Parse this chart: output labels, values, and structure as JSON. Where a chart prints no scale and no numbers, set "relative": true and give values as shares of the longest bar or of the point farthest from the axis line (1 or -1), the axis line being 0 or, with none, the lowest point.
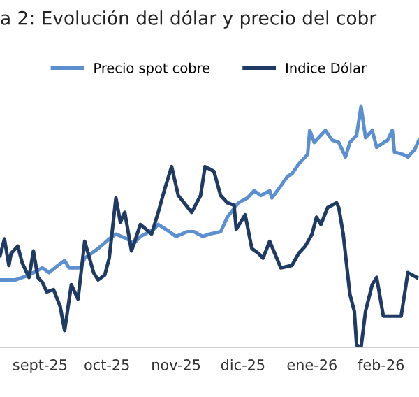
{
  "chart_data": {
    "type": "line",
    "title": "a 2: Evolución del dólar y precio del cobr",
    "relative": true,
    "legend": "top",
    "grid": false,
    "marker": "none",
    "line_style": "solid",
    "xlim": [
      "2025-08-28",
      "2026-03-04"
    ],
    "xticks": [
      {
        "value": "2025-09-15",
        "label": "sept-25"
      },
      {
        "value": "2025-10-15",
        "label": "oct-25"
      },
      {
        "value": "2025-11-15",
        "label": "nov-25"
      },
      {
        "value": "2025-12-15",
        "label": "dic-25"
      },
      {
        "value": "2026-01-15",
        "label": "ene-26"
      },
      {
        "value": "2026-02-15",
        "label": "feb-26"
      }
    ],
    "series": [
      {
        "name": "Precio spot cobre",
        "color": "#5b8fd0",
        "x": [
          "2025-08-28",
          "2025-09-04",
          "2025-09-10",
          "2025-09-16",
          "2025-09-19",
          "2025-09-23",
          "2025-09-26",
          "2025-09-28",
          "2025-10-03",
          "2025-10-05",
          "2025-10-11",
          "2025-10-16",
          "2025-10-19",
          "2025-10-24",
          "2025-10-27",
          "2025-10-30",
          "2025-11-05",
          "2025-11-07",
          "2025-11-12",
          "2025-11-15",
          "2025-11-20",
          "2025-11-23",
          "2025-11-27",
          "2025-11-30",
          "2025-12-05",
          "2025-12-08",
          "2025-12-13",
          "2025-12-17",
          "2025-12-20",
          "2025-12-23",
          "2025-12-27",
          "2025-12-28",
          "2026-01-01",
          "2026-01-04",
          "2026-01-06",
          "2026-01-09",
          "2026-01-13",
          "2026-01-14",
          "2026-01-16",
          "2026-01-21",
          "2026-01-24",
          "2026-01-27",
          "2026-01-30",
          "2026-02-01",
          "2026-02-04",
          "2026-02-06",
          "2026-02-08",
          "2026-02-11",
          "2026-02-13",
          "2026-02-18",
          "2026-02-20",
          "2026-02-21",
          "2026-02-25",
          "2026-02-27",
          "2026-03-02",
          "2026-03-04"
        ],
        "values": [
          0.28,
          0.28,
          0.3,
          0.33,
          0.31,
          0.34,
          0.36,
          0.33,
          0.33,
          0.37,
          0.41,
          0.45,
          0.47,
          0.45,
          0.43,
          0.46,
          0.49,
          0.51,
          0.48,
          0.46,
          0.48,
          0.48,
          0.46,
          0.47,
          0.48,
          0.54,
          0.6,
          0.62,
          0.65,
          0.63,
          0.65,
          0.62,
          0.67,
          0.71,
          0.72,
          0.76,
          0.8,
          0.9,
          0.85,
          0.9,
          0.86,
          0.85,
          0.79,
          0.85,
          0.88,
          1.0,
          0.87,
          0.9,
          0.83,
          0.86,
          0.9,
          0.81,
          0.8,
          0.79,
          0.82,
          0.86
        ]
      },
      {
        "name": "Indice Dólar",
        "color": "#1f3a63",
        "x": [
          "2025-08-28",
          "2025-08-30",
          "2025-09-01",
          "2025-09-02",
          "2025-09-05",
          "2025-09-07",
          "2025-09-10",
          "2025-09-12",
          "2025-09-14",
          "2025-09-16",
          "2025-09-18",
          "2025-09-21",
          "2025-09-24",
          "2025-09-26",
          "2025-09-29",
          "2025-10-02",
          "2025-10-05",
          "2025-10-09",
          "2025-10-11",
          "2025-10-14",
          "2025-10-16",
          "2025-10-19",
          "2025-10-21",
          "2025-10-23",
          "2025-10-26",
          "2025-10-30",
          "2025-11-04",
          "2025-11-07",
          "2025-11-10",
          "2025-11-13",
          "2025-11-16",
          "2025-11-22",
          "2025-11-26",
          "2025-11-28",
          "2025-11-30",
          "2025-12-02",
          "2025-12-05",
          "2025-12-08",
          "2025-12-11",
          "2025-12-12",
          "2025-12-16",
          "2025-12-19",
          "2025-12-22",
          "2025-12-24",
          "2025-12-27",
          "2026-01-01",
          "2026-01-06",
          "2026-01-09",
          "2026-01-12",
          "2026-01-15",
          "2026-01-17",
          "2026-01-19",
          "2026-01-22",
          "2026-01-26",
          "2026-01-27",
          "2026-01-29",
          "2026-02-01",
          "2026-02-03",
          "2026-02-04",
          "2026-02-06",
          "2026-02-08",
          "2026-02-11",
          "2026-02-13",
          "2026-02-16",
          "2026-02-20",
          "2026-02-24",
          "2026-02-27",
          "2026-03-03"
        ],
        "values": [
          0.38,
          0.45,
          0.34,
          0.39,
          0.42,
          0.35,
          0.29,
          0.4,
          0.29,
          0.27,
          0.23,
          0.24,
          0.17,
          0.07,
          0.26,
          0.2,
          0.44,
          0.31,
          0.28,
          0.3,
          0.37,
          0.62,
          0.52,
          0.56,
          0.4,
          0.51,
          0.47,
          0.56,
          0.66,
          0.75,
          0.63,
          0.56,
          0.63,
          0.75,
          0.74,
          0.73,
          0.63,
          0.6,
          0.59,
          0.49,
          0.55,
          0.41,
          0.39,
          0.37,
          0.44,
          0.33,
          0.34,
          0.39,
          0.42,
          0.47,
          0.54,
          0.51,
          0.58,
          0.6,
          0.58,
          0.47,
          0.22,
          0.15,
          0.01,
          0.0,
          0.15,
          0.26,
          0.29,
          0.13,
          0.13,
          0.13,
          0.31,
          0.29
        ]
      }
    ]
  }
}
